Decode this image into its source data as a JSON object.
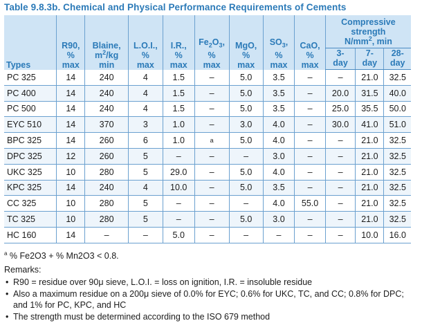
{
  "title": "Table 9.8.3b. Chemical and Physical Performance Requirements of Cements",
  "header": {
    "types": "Types",
    "r90": [
      "R90,",
      "%",
      "max"
    ],
    "blaine": [
      "Blaine,",
      "min"
    ],
    "blaine_unit": "m",
    "blaine_unit_sup": "2",
    "blaine_unit_rest": "/kg",
    "loi": [
      "L.O.I.,",
      "%",
      "max"
    ],
    "ir": [
      "I.R.,",
      "%",
      "max"
    ],
    "fe2o3_a": "Fe",
    "fe2o3_sub1": "2",
    "fe2o3_b": "O",
    "fe2o3_sub2": "3",
    "fe2o3_c": ",",
    "fe2o3": [
      "%",
      "max"
    ],
    "mgo": [
      "MgO,",
      "%",
      "max"
    ],
    "so3_a": "SO",
    "so3_sub": "3",
    "so3_c": ",",
    "so3": [
      "%",
      "max"
    ],
    "cao": [
      "CaO,",
      "%",
      "max"
    ],
    "compressive": [
      "Compressive",
      "strength"
    ],
    "cs_unit_a": "N/mm",
    "cs_unit_sup": "2",
    "cs_unit_b": ", min",
    "d3": [
      "3-",
      "day"
    ],
    "d7": [
      "7-",
      "day"
    ],
    "d28": [
      "28-",
      "day"
    ]
  },
  "rows": [
    [
      "PC 325",
      "14",
      "240",
      "4",
      "1.5",
      "–",
      "5.0",
      "3.5",
      "–",
      "–",
      "21.0",
      "32.5"
    ],
    [
      "PC 400",
      "14",
      "240",
      "4",
      "1.5",
      "–",
      "5.0",
      "3.5",
      "–",
      "20.0",
      "31.5",
      "40.0"
    ],
    [
      "PC 500",
      "14",
      "240",
      "4",
      "1.5",
      "–",
      "5.0",
      "3.5",
      "–",
      "25.0",
      "35.5",
      "50.0"
    ],
    [
      "EYC 510",
      "14",
      "370",
      "3",
      "1.0",
      "–",
      "3.0",
      "4.0",
      "–",
      "30.0",
      "41.0",
      "51.0"
    ],
    [
      "BPC 325",
      "14",
      "260",
      "6",
      "1.0",
      "a",
      "5.0",
      "4.0",
      "–",
      "–",
      "21.0",
      "32.5"
    ],
    [
      "DPC 325",
      "12",
      "260",
      "5",
      "–",
      "–",
      "–",
      "3.0",
      "–",
      "–",
      "21.0",
      "32.5"
    ],
    [
      "UKC 325",
      "10",
      "280",
      "5",
      "29.0",
      "–",
      "5.0",
      "4.0",
      "–",
      "–",
      "21.0",
      "32.5"
    ],
    [
      "KPC 325",
      "14",
      "240",
      "4",
      "10.0",
      "–",
      "5.0",
      "3.5",
      "–",
      "–",
      "21.0",
      "32.5"
    ],
    [
      "CC 325",
      "10",
      "280",
      "5",
      "–",
      "–",
      "–",
      "4.0",
      "55.0",
      "–",
      "21.0",
      "32.5"
    ],
    [
      "TC 325",
      "10",
      "280",
      "5",
      "–",
      "–",
      "5.0",
      "3.0",
      "–",
      "–",
      "21.0",
      "32.5"
    ],
    [
      "HC 160",
      "14",
      "–",
      "–",
      "5.0",
      "–",
      "–",
      "–",
      "–",
      "–",
      "10.0",
      "16.0"
    ]
  ],
  "footnote": {
    "marker": "a",
    "text": " % Fe2O3 + % Mn2O3 < 0.8."
  },
  "remarks_label": "Remarks:",
  "remarks": [
    "R90 = residue over 90μ sieve, L.O.I. = loss on ignition, I.R. = insoluble residue",
    "Also a maximum residue on a 200μ sieve of 0.0% for EYC; 0.6% for UKC, TC, and CC; 0.8% for DPC; and 1% for PC, KPC, and HC",
    "The strength must be determined according to the ISO 679 method"
  ],
  "colors": {
    "title": "#2b7ab8",
    "header_bg": "#cfe4f5",
    "rule": "#6aa0cf"
  }
}
